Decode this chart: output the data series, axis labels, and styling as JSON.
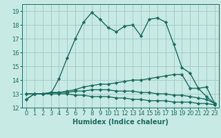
{
  "xlabel": "Humidex (Indice chaleur)",
  "bg_color": "#c8eae4",
  "grid_color": "#a0c8c4",
  "line_color": "#1a6b60",
  "x_values": [
    0,
    1,
    2,
    3,
    4,
    5,
    6,
    7,
    8,
    9,
    10,
    11,
    12,
    13,
    14,
    15,
    16,
    17,
    18,
    19,
    20,
    21,
    22,
    23
  ],
  "line1": [
    12.6,
    13.0,
    13.0,
    13.0,
    14.1,
    15.6,
    17.0,
    18.2,
    18.9,
    18.4,
    17.8,
    17.5,
    17.9,
    18.0,
    17.2,
    18.4,
    18.5,
    18.2,
    16.6,
    14.9,
    14.5,
    13.4,
    13.5,
    12.3
  ],
  "line2": [
    13.0,
    13.0,
    13.0,
    13.1,
    13.1,
    13.2,
    13.3,
    13.5,
    13.6,
    13.7,
    13.7,
    13.8,
    13.9,
    14.0,
    14.0,
    14.1,
    14.2,
    14.3,
    14.4,
    14.4,
    13.4,
    13.4,
    12.8,
    12.3
  ],
  "line3": [
    13.0,
    13.0,
    13.0,
    13.1,
    13.1,
    13.1,
    13.2,
    13.2,
    13.3,
    13.3,
    13.3,
    13.2,
    13.2,
    13.2,
    13.1,
    13.1,
    13.0,
    13.0,
    12.9,
    12.9,
    12.8,
    12.7,
    12.6,
    12.3
  ],
  "line4": [
    12.6,
    13.0,
    13.0,
    13.0,
    13.0,
    13.0,
    12.9,
    12.9,
    12.8,
    12.8,
    12.8,
    12.7,
    12.7,
    12.6,
    12.6,
    12.5,
    12.5,
    12.5,
    12.4,
    12.4,
    12.4,
    12.3,
    12.3,
    12.2
  ],
  "ylim": [
    12,
    19.5
  ],
  "yticks": [
    12,
    13,
    14,
    15,
    16,
    17,
    18,
    19
  ],
  "xlim": [
    -0.5,
    23.5
  ],
  "marker": "D",
  "marker_size": 2.2,
  "line_width": 1.0,
  "font_size": 6.5
}
